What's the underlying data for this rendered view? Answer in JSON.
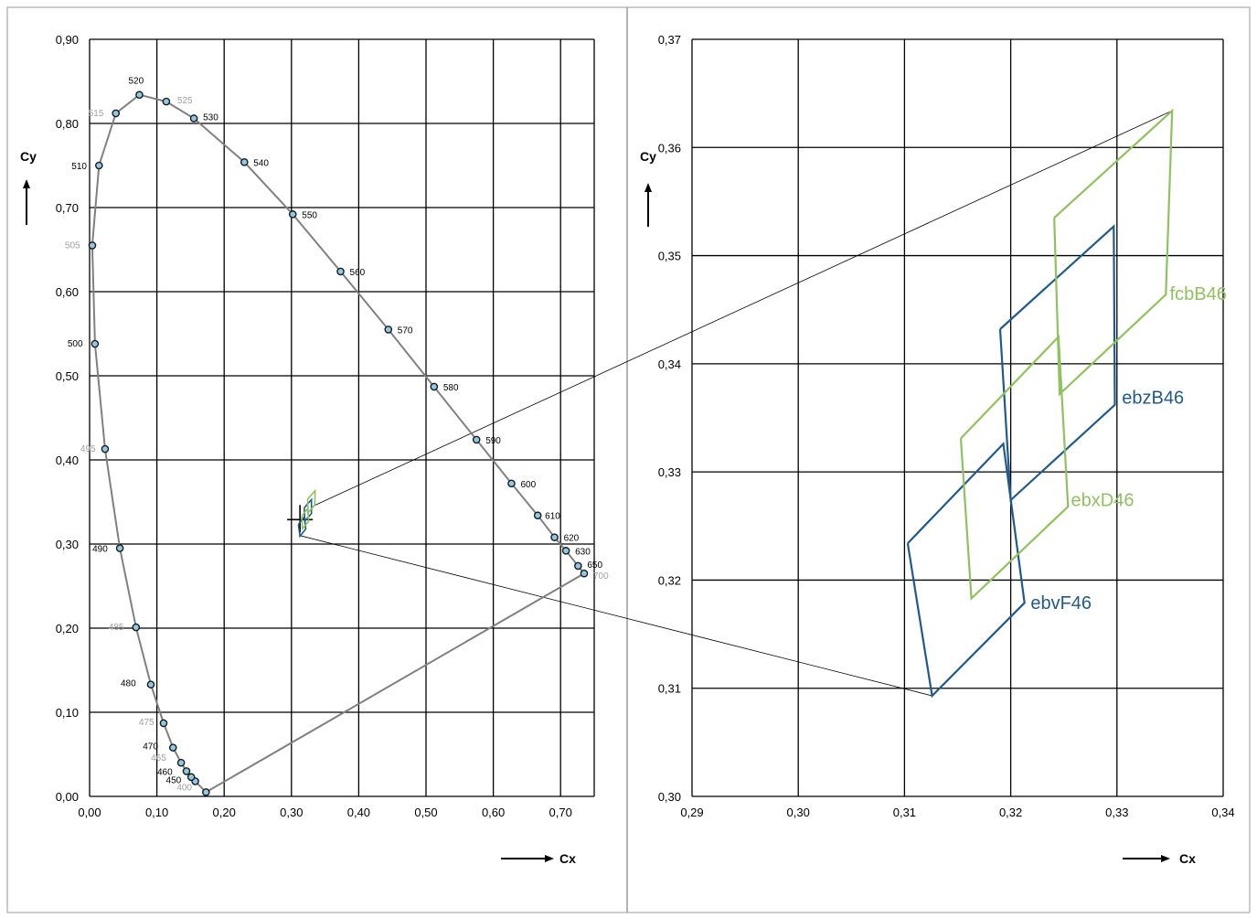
{
  "colors": {
    "blue": "#1f5a8a",
    "green": "#8fc25e",
    "locus": "#808080",
    "marker_fill": "#8ecae6",
    "label_black": "#000000",
    "label_grey": "#a0a0a0",
    "grid": "#000000",
    "panel_border": "#9a9a9a"
  },
  "chart_data": [
    {
      "type": "scatter",
      "title": "",
      "xlabel": "Cx",
      "ylabel": "Cy",
      "xlim": [
        0,
        0.75
      ],
      "ylim": [
        0,
        0.9
      ],
      "x_ticks": [
        "0,00",
        "0,10",
        "0,20",
        "0,30",
        "0,40",
        "0,50",
        "0,60",
        "0,70"
      ],
      "y_ticks": [
        "0,00",
        "0,10",
        "0,20",
        "0,30",
        "0,40",
        "0,50",
        "0,60",
        "0,70",
        "0,80",
        "0,90"
      ],
      "grid": true,
      "spectral_locus": [
        {
          "label": "400",
          "x": 0.173,
          "y": 0.005,
          "grey": true
        },
        {
          "label": "450",
          "x": 0.157,
          "y": 0.018,
          "grey": false
        },
        {
          "label": "",
          "x": 0.151,
          "y": 0.023,
          "grey": false
        },
        {
          "label": "460",
          "x": 0.144,
          "y": 0.03,
          "grey": false
        },
        {
          "label": "465",
          "x": 0.136,
          "y": 0.04,
          "grey": true
        },
        {
          "label": "470",
          "x": 0.124,
          "y": 0.058,
          "grey": false
        },
        {
          "label": "475",
          "x": 0.11,
          "y": 0.087,
          "grey": true
        },
        {
          "label": "480",
          "x": 0.091,
          "y": 0.133,
          "grey": false
        },
        {
          "label": "485",
          "x": 0.069,
          "y": 0.201,
          "grey": true
        },
        {
          "label": "490",
          "x": 0.045,
          "y": 0.295,
          "grey": false
        },
        {
          "label": "495",
          "x": 0.023,
          "y": 0.413,
          "grey": true
        },
        {
          "label": "500",
          "x": 0.008,
          "y": 0.538,
          "grey": false
        },
        {
          "label": "505",
          "x": 0.004,
          "y": 0.655,
          "grey": true
        },
        {
          "label": "510",
          "x": 0.014,
          "y": 0.75,
          "grey": false
        },
        {
          "label": "515",
          "x": 0.039,
          "y": 0.812,
          "grey": true
        },
        {
          "label": "520",
          "x": 0.074,
          "y": 0.834,
          "grey": false
        },
        {
          "label": "525",
          "x": 0.114,
          "y": 0.826,
          "grey": true
        },
        {
          "label": "530",
          "x": 0.155,
          "y": 0.806,
          "grey": false
        },
        {
          "label": "540",
          "x": 0.23,
          "y": 0.754,
          "grey": false
        },
        {
          "label": "550",
          "x": 0.302,
          "y": 0.692,
          "grey": false
        },
        {
          "label": "560",
          "x": 0.373,
          "y": 0.624,
          "grey": false
        },
        {
          "label": "570",
          "x": 0.444,
          "y": 0.555,
          "grey": false
        },
        {
          "label": "580",
          "x": 0.512,
          "y": 0.487,
          "grey": false
        },
        {
          "label": "590",
          "x": 0.575,
          "y": 0.424,
          "grey": false
        },
        {
          "label": "600",
          "x": 0.627,
          "y": 0.372,
          "grey": false
        },
        {
          "label": "610",
          "x": 0.666,
          "y": 0.334,
          "grey": false
        },
        {
          "label": "620",
          "x": 0.691,
          "y": 0.308,
          "grey": false
        },
        {
          "label": "630",
          "x": 0.708,
          "y": 0.292,
          "grey": false
        },
        {
          "label": "650",
          "x": 0.726,
          "y": 0.274,
          "grey": false
        },
        {
          "label": "700",
          "x": 0.735,
          "y": 0.265,
          "grey": true
        }
      ],
      "white_point": {
        "x": 0.3127,
        "y": 0.329
      }
    },
    {
      "type": "line",
      "title": "",
      "xlabel": "Cx",
      "ylabel": "Cy",
      "xlim": [
        0.29,
        0.34
      ],
      "ylim": [
        0.3,
        0.37
      ],
      "x_ticks": [
        "0,29",
        "0,30",
        "0,31",
        "0,32",
        "0,33",
        "0,34"
      ],
      "y_ticks": [
        "0,30",
        "0,31",
        "0,32",
        "0,33",
        "0,34",
        "0,35",
        "0,36",
        "0,37"
      ],
      "grid": true,
      "series": [
        {
          "name": "ebzB46",
          "color": "blue",
          "points": [
            [
              0.319,
              0.3432
            ],
            [
              0.3297,
              0.3527
            ],
            [
              0.3298,
              0.3362
            ],
            [
              0.32,
              0.3274
            ],
            [
              0.319,
              0.3432
            ]
          ],
          "label_at": [
            0.3303,
            0.337
          ]
        },
        {
          "name": "ebvF46",
          "color": "blue",
          "points": [
            [
              0.3103,
              0.3234
            ],
            [
              0.3193,
              0.3326
            ],
            [
              0.3213,
              0.3179
            ],
            [
              0.3126,
              0.3093
            ],
            [
              0.3103,
              0.3234
            ]
          ],
          "label_at": [
            0.3217,
            0.318
          ]
        },
        {
          "name": "fcbB46",
          "color": "green",
          "points": [
            [
              0.3241,
              0.3535
            ],
            [
              0.3352,
              0.3634
            ],
            [
              0.3346,
              0.3464
            ],
            [
              0.3246,
              0.3372
            ],
            [
              0.3241,
              0.3535
            ]
          ],
          "label_at": [
            0.3348,
            0.3466
          ]
        },
        {
          "name": "ebxD46",
          "color": "green",
          "points": [
            [
              0.3153,
              0.3331
            ],
            [
              0.3245,
              0.3425
            ],
            [
              0.3254,
              0.3268
            ],
            [
              0.3163,
              0.3183
            ],
            [
              0.3153,
              0.3331
            ]
          ],
          "label_at": [
            0.3255,
            0.3275
          ]
        }
      ],
      "zoom_lines": [
        {
          "from_panel": 0,
          "from": [
            0.332,
            0.345
          ],
          "to": [
            0.3352,
            0.3634
          ]
        },
        {
          "from_panel": 0,
          "from": [
            0.313,
            0.31
          ],
          "to": [
            0.3126,
            0.3093
          ]
        }
      ]
    }
  ]
}
